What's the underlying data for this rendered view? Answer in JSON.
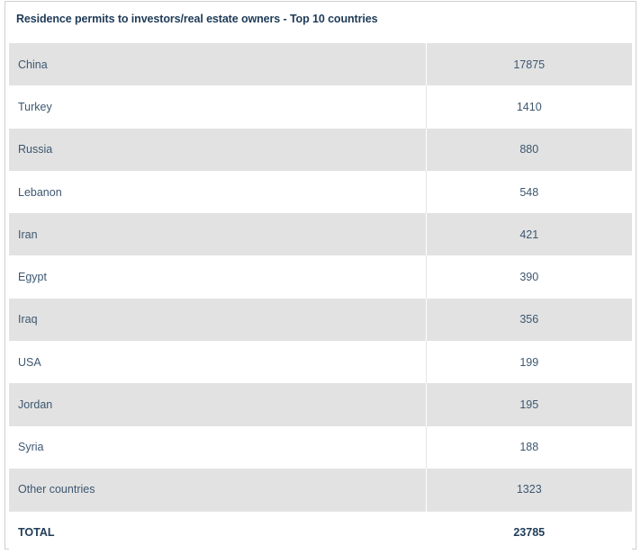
{
  "title": "Residence permits to investors/real estate owners - Top 10 countries",
  "rows": [
    {
      "country": "China",
      "value": "17875"
    },
    {
      "country": "Turkey",
      "value": "1410"
    },
    {
      "country": "Russia",
      "value": "880"
    },
    {
      "country": "Lebanon",
      "value": "548"
    },
    {
      "country": "Iran",
      "value": "421"
    },
    {
      "country": "Egypt",
      "value": "390"
    },
    {
      "country": "Iraq",
      "value": "356"
    },
    {
      "country": "USA",
      "value": "199"
    },
    {
      "country": "Jordan",
      "value": "195"
    },
    {
      "country": "Syria",
      "value": "188"
    },
    {
      "country": "Other countries",
      "value": "1323"
    }
  ],
  "total": {
    "label": "TOTAL",
    "value": "23785"
  },
  "colors": {
    "row_shade": "#e2e2e2",
    "text": "#3d5770",
    "title": "#1f3b57"
  }
}
